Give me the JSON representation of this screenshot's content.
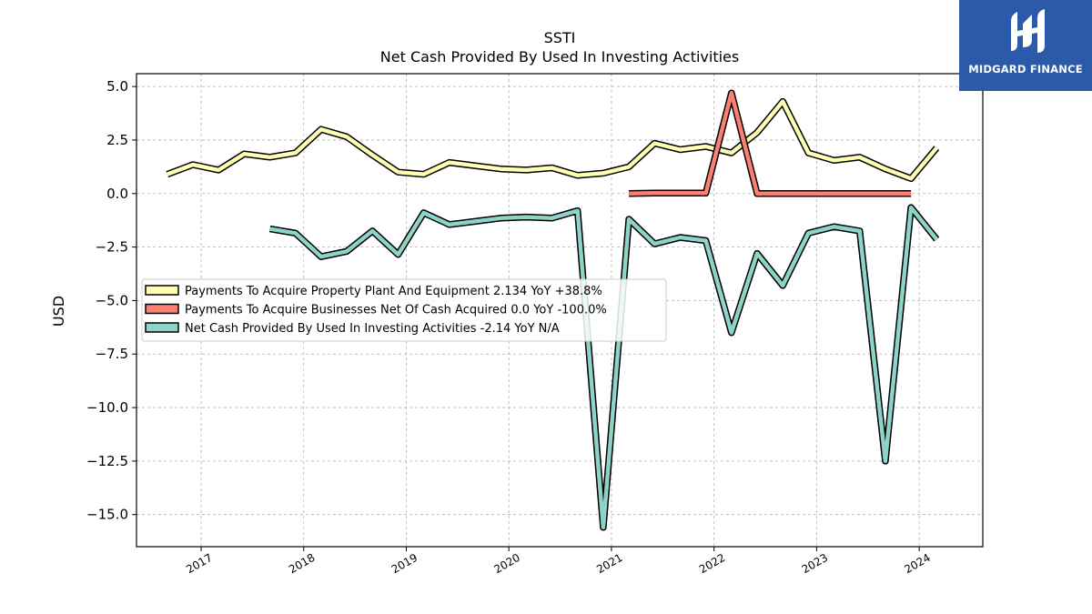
{
  "brand": {
    "name": "MIDGARD FINANCE",
    "color": "#2a5aa8"
  },
  "chart_data": {
    "type": "line",
    "title": "SSTI",
    "subtitle": "Net Cash Provided By Used In Investing Activities",
    "ylabel": "USD",
    "xlabel": "",
    "ylim": [
      -16.5,
      5.6
    ],
    "yticks": [
      5.0,
      2.5,
      0.0,
      -2.5,
      -5.0,
      -7.5,
      -10.0,
      -12.5,
      -15.0
    ],
    "ytick_labels": [
      "5.0",
      "2.5",
      "0.0",
      "−2.5",
      "−5.0",
      "−7.5",
      "−10.0",
      "−12.5",
      "−15.0"
    ],
    "xlim": [
      2016.37,
      2024.62
    ],
    "xticks": [
      2017,
      2018,
      2019,
      2020,
      2021,
      2022,
      2023,
      2024
    ],
    "xtick_labels": [
      "2017",
      "2018",
      "2019",
      "2020",
      "2021",
      "2022",
      "2023",
      "2024"
    ],
    "grid": true,
    "legend_position": "center-left",
    "series": [
      {
        "name": "Payments To Acquire Property Plant And Equipment",
        "legend_label": "Payments To Acquire Property Plant And Equipment  2.134 YoY +38.8%",
        "color": "#ffffb3",
        "x": [
          2016.67,
          2016.92,
          2017.17,
          2017.42,
          2017.67,
          2017.92,
          2018.17,
          2018.42,
          2018.67,
          2018.92,
          2019.17,
          2019.42,
          2019.67,
          2019.92,
          2020.17,
          2020.42,
          2020.67,
          2020.92,
          2021.17,
          2021.42,
          2021.67,
          2021.92,
          2022.17,
          2022.42,
          2022.67,
          2022.92,
          2023.17,
          2023.42,
          2023.67,
          2023.92,
          2024.17
        ],
        "y": [
          0.9,
          1.35,
          1.1,
          1.85,
          1.7,
          1.9,
          3.0,
          2.65,
          1.8,
          1.0,
          0.9,
          1.45,
          1.3,
          1.15,
          1.1,
          1.2,
          0.85,
          0.95,
          1.25,
          2.35,
          2.05,
          2.2,
          1.9,
          2.85,
          4.3,
          1.9,
          1.55,
          1.7,
          1.15,
          0.7,
          2.134
        ]
      },
      {
        "name": "Payments To Acquire Businesses Net Of Cash Acquired",
        "legend_label": "Payments To Acquire Businesses Net Of Cash Acquired  0.0 YoY -100.0%",
        "color": "#fb8072",
        "x": [
          2021.17,
          2021.42,
          2021.67,
          2021.92,
          2022.17,
          2022.42,
          2022.67,
          2022.92,
          2023.17,
          2023.42,
          2023.67,
          2023.92
        ],
        "y": [
          0.0,
          0.02,
          0.02,
          0.02,
          4.7,
          0.0,
          0.0,
          0.0,
          0.0,
          0.0,
          0.0,
          0.0
        ]
      },
      {
        "name": "Net Cash Provided By Used In Investing Activities",
        "legend_label": "Net Cash Provided By Used In Investing Activities  -2.14 YoY N/A",
        "color": "#8dd3c7",
        "x": [
          2017.67,
          2017.92,
          2018.17,
          2018.42,
          2018.67,
          2018.92,
          2019.17,
          2019.42,
          2019.67,
          2019.92,
          2020.17,
          2020.42,
          2020.67,
          2020.92,
          2021.17,
          2021.42,
          2021.67,
          2021.92,
          2022.17,
          2022.42,
          2022.67,
          2022.92,
          2023.17,
          2023.42,
          2023.67,
          2023.92,
          2024.17
        ],
        "y": [
          -1.65,
          -1.85,
          -2.95,
          -2.7,
          -1.75,
          -2.85,
          -0.9,
          -1.45,
          -1.3,
          -1.15,
          -1.1,
          -1.15,
          -0.8,
          -15.6,
          -1.2,
          -2.35,
          -2.05,
          -2.2,
          -6.5,
          -2.8,
          -4.3,
          -1.85,
          -1.55,
          -1.75,
          -12.5,
          -0.65,
          -2.14
        ]
      }
    ]
  }
}
